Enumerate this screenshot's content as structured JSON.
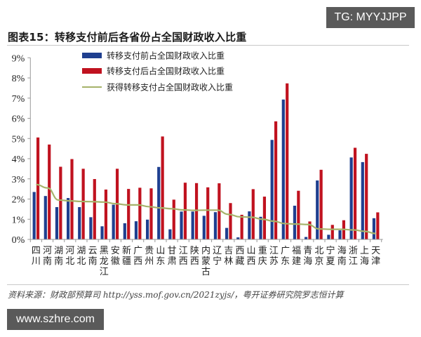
{
  "watermarks": {
    "top_right": "TG: MYYJJPP",
    "bottom_left": "www.szhre.com"
  },
  "title": "图表15：转移支付前后各省份占全国财政收入比重",
  "source": "资料来源：财政部预算司 http://yss.mof.gov.cn/2021zyjs/，粤开证券研究院罗志恒计算",
  "colors": {
    "before": "#1f3f8f",
    "after": "#c0121f",
    "line": "#a6b36a",
    "axis": "#999999"
  },
  "chart_data": {
    "type": "bar",
    "title": "转移支付前后各省份占全国财政收入比重",
    "xlabel": "",
    "ylabel": "",
    "ylim": [
      0,
      9
    ],
    "yticks": [
      "0%",
      "1%",
      "2%",
      "3%",
      "4%",
      "5%",
      "6%",
      "7%",
      "8%",
      "9%"
    ],
    "grid": false,
    "legend_position": "top-center",
    "categories": [
      "四川",
      "河南",
      "湖南",
      "河北",
      "湖北",
      "云南",
      "黑龙江",
      "安徽",
      "新疆",
      "广西",
      "贵州",
      "山东",
      "甘肃",
      "江西",
      "陕西",
      "内蒙古",
      "辽宁",
      "吉林",
      "西藏",
      "山西",
      "重庆",
      "江苏",
      "广东",
      "福建",
      "青海",
      "北京",
      "宁夏",
      "海南",
      "浙江",
      "上海",
      "天津"
    ],
    "series": [
      {
        "name": "转移支付前占全国财政收入比重",
        "type": "bar",
        "values": [
          2.35,
          2.15,
          1.6,
          2.05,
          1.6,
          1.1,
          0.65,
          1.72,
          0.8,
          0.9,
          0.98,
          3.59,
          0.5,
          1.38,
          1.38,
          1.17,
          1.35,
          0.57,
          0.1,
          1.39,
          1.12,
          4.93,
          6.93,
          1.67,
          0.12,
          2.92,
          0.23,
          0.45,
          4.06,
          3.83,
          1.05
        ]
      },
      {
        "name": "转移支付后占全国财政收入比重",
        "type": "bar",
        "values": [
          5.05,
          4.7,
          3.6,
          3.98,
          3.5,
          2.99,
          2.47,
          3.5,
          2.5,
          2.56,
          2.53,
          5.1,
          1.97,
          2.81,
          2.79,
          2.58,
          2.78,
          1.8,
          1.22,
          2.49,
          2.12,
          5.85,
          7.73,
          2.41,
          0.89,
          3.45,
          0.72,
          0.95,
          4.54,
          4.24,
          1.34
        ]
      },
      {
        "name": "获得转移支付占全国财政收入比重",
        "type": "line",
        "values": [
          2.72,
          2.55,
          1.95,
          1.91,
          1.88,
          1.87,
          1.85,
          1.77,
          1.71,
          1.71,
          1.62,
          1.56,
          1.52,
          1.46,
          1.44,
          1.45,
          1.45,
          1.24,
          1.12,
          1.1,
          1.0,
          0.9,
          0.78,
          0.76,
          0.74,
          0.52,
          0.5,
          0.5,
          0.47,
          0.4,
          0.29
        ]
      }
    ]
  }
}
